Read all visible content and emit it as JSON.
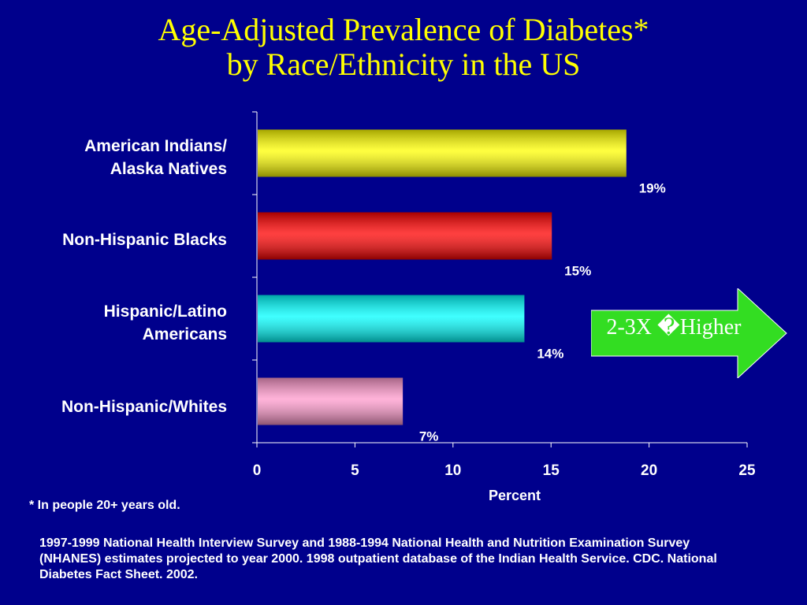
{
  "title_line1": "Age-Adjusted Prevalence of Diabetes*",
  "title_line2": "by Race/Ethnicity in the US",
  "footnote": "* In people 20+ years old.",
  "source": "1997-1999 National Health Interview Survey and 1988-1994 National Health and Nutrition Examination Survey (NHANES) estimates projected to year 2000. 1998 outpatient database of the Indian Health Service. CDC. National Diabetes Fact Sheet. 2002.",
  "callout": {
    "label": "2-3X �Higher",
    "color": "#33dd22"
  },
  "chart_data": {
    "type": "bar",
    "orientation": "horizontal",
    "title": "Age-Adjusted Prevalence of Diabetes* by Race/Ethnicity in the US",
    "xlabel": "Percent",
    "ylabel": "",
    "xlim": [
      0,
      25
    ],
    "xticks": [
      "0",
      "5",
      "10",
      "15",
      "20",
      "25"
    ],
    "categories": [
      {
        "line1": "American Indians/",
        "line2": "Alaska Natives"
      },
      {
        "line1": "Non-Hispanic Blacks",
        "line2": ""
      },
      {
        "line1": "Hispanic/Latino",
        "line2": "Americans"
      },
      {
        "line1": "Non-Hispanic/Whites",
        "line2": ""
      }
    ],
    "values": [
      18.8,
      15.0,
      13.6,
      7.4
    ],
    "value_labels": [
      "19%",
      "15%",
      "14%",
      "7%"
    ],
    "colors": [
      "#ffff00",
      "#ff0000",
      "#00ffff",
      "#ff99cc"
    ],
    "grid": false,
    "legend": "none"
  }
}
